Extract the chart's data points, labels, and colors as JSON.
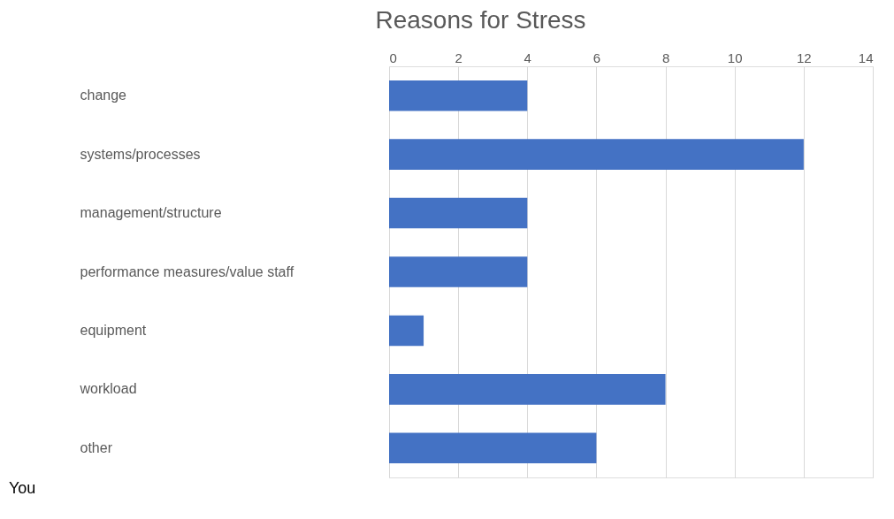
{
  "chart_data": {
    "type": "bar",
    "orientation": "horizontal",
    "title": "Reasons for Stress",
    "categories": [
      "change",
      "systems/processes",
      "management/structure",
      "performance measures/value staff",
      "equipment",
      "workload",
      "other"
    ],
    "values": [
      4,
      12,
      4,
      4,
      1,
      8,
      6
    ],
    "color": "#4472c4",
    "xlim": [
      0,
      14
    ],
    "xticks": [
      0,
      2,
      4,
      6,
      8,
      10,
      12,
      14
    ],
    "grid": "x",
    "annotations": [
      "You"
    ]
  }
}
